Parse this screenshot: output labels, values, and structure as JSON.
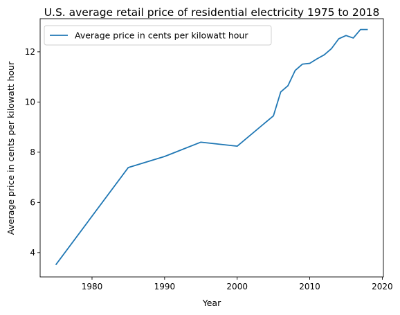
{
  "chart_data": {
    "type": "line",
    "title": "U.S. average retail price of residential electricity 1975 to 2018",
    "xlabel": "Year",
    "ylabel": "Average price in cents per kilowatt hour",
    "xlim": [
      1972.85,
      2020.15
    ],
    "ylim": [
      3.03,
      13.32
    ],
    "x_ticks": [
      1980,
      1990,
      2000,
      2010,
      2020
    ],
    "y_ticks": [
      4,
      6,
      8,
      10,
      12
    ],
    "grid": false,
    "legend": {
      "placement": "top-left"
    },
    "series": [
      {
        "name": "Average price in cents per kilowatt hour",
        "color": "#1f77b4",
        "x": [
          1975,
          1985,
          1990,
          1995,
          2000,
          2005,
          2006,
          2007,
          2008,
          2009,
          2010,
          2011,
          2012,
          2013,
          2014,
          2015,
          2016,
          2017,
          2018
        ],
        "values": [
          3.51,
          7.39,
          7.83,
          8.4,
          8.24,
          9.45,
          10.4,
          10.65,
          11.26,
          11.51,
          11.54,
          11.72,
          11.88,
          12.13,
          12.52,
          12.65,
          12.55,
          12.89,
          12.89
        ]
      }
    ]
  }
}
